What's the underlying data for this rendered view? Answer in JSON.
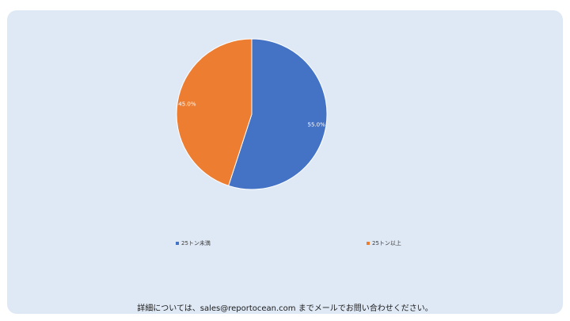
{
  "chart_data": {
    "type": "pie",
    "categories": [
      "25トン未満",
      "25トン以上"
    ],
    "values": [
      55.0,
      45.0
    ],
    "data_labels": [
      "55.0%",
      "45.0%"
    ],
    "colors": [
      "#4472c4",
      "#ed7d31"
    ],
    "legend": "bottom",
    "start_angle_deg": 0,
    "direction": "clockwise"
  },
  "footer": {
    "text": "詳細については、sales@reportocean.com までメールでお問い合わせください。"
  }
}
